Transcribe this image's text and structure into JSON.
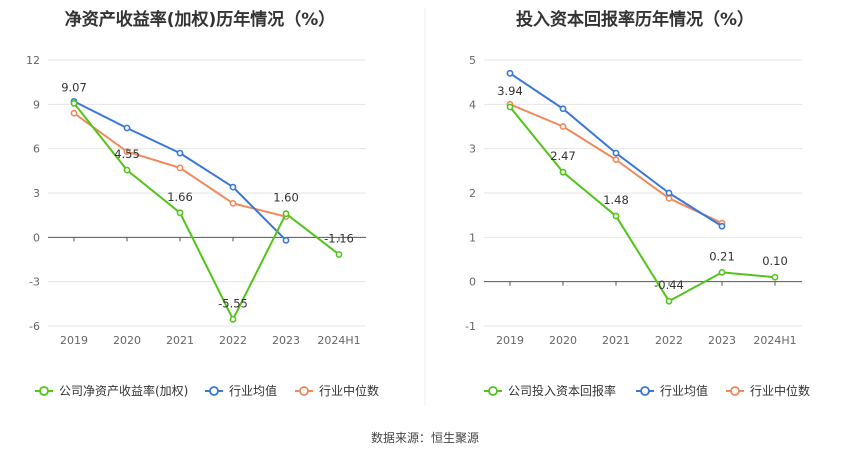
{
  "source": "数据来源：恒生聚源",
  "chart_data": [
    {
      "type": "line",
      "title": "净资产收益率(加权)历年情况（%）",
      "categories": [
        "2019",
        "2020",
        "2021",
        "2022",
        "2023",
        "2024H1"
      ],
      "ylim": [
        -6,
        12
      ],
      "yticks": [
        -6,
        -3,
        0,
        3,
        6,
        9,
        12
      ],
      "grid": true,
      "legend_position": "bottom",
      "series": [
        {
          "name": "公司净资产收益率(加权)",
          "color": "#52c41a",
          "values": [
            9.07,
            4.55,
            1.66,
            -5.55,
            1.6,
            -1.16
          ],
          "labels": [
            "9.07",
            "4.55",
            "1.66",
            "-5.55",
            "1.60",
            "-1.16"
          ]
        },
        {
          "name": "行业均值",
          "color": "#3a78d8",
          "values": [
            9.2,
            7.4,
            5.7,
            3.4,
            -0.2,
            null
          ]
        },
        {
          "name": "行业中位数",
          "color": "#f08a5d",
          "values": [
            8.4,
            5.8,
            4.7,
            2.3,
            1.4,
            null
          ]
        }
      ]
    },
    {
      "type": "line",
      "title": "投入资本回报率历年情况（%）",
      "categories": [
        "2019",
        "2020",
        "2021",
        "2022",
        "2023",
        "2024H1"
      ],
      "ylim": [
        -1,
        5
      ],
      "yticks": [
        -1,
        0,
        1,
        2,
        3,
        4,
        5
      ],
      "grid": true,
      "legend_position": "bottom",
      "series": [
        {
          "name": "公司投入资本回报率",
          "color": "#52c41a",
          "values": [
            3.94,
            2.47,
            1.48,
            -0.44,
            0.21,
            0.1
          ],
          "labels": [
            "3.94",
            "2.47",
            "1.48",
            "-0.44",
            "0.21",
            "0.10"
          ]
        },
        {
          "name": "行业均值",
          "color": "#3a78d8",
          "values": [
            4.7,
            3.9,
            2.9,
            2.0,
            1.25,
            null
          ]
        },
        {
          "name": "行业中位数",
          "color": "#f08a5d",
          "values": [
            4.0,
            3.5,
            2.75,
            1.88,
            1.32,
            null
          ]
        }
      ]
    }
  ]
}
